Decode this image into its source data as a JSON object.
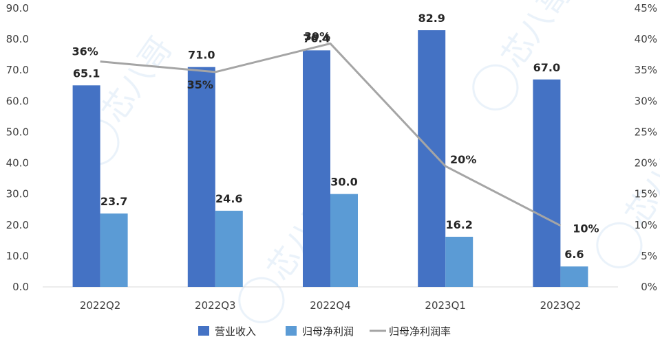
{
  "chart_data": {
    "type": "bar",
    "categories": [
      "2022Q2",
      "2022Q3",
      "2022Q4",
      "2023Q1",
      "2023Q2"
    ],
    "series": [
      {
        "name": "营业收入",
        "kind": "bar",
        "axis": "left",
        "color": "#4472C4",
        "values": [
          65.1,
          71.0,
          76.4,
          82.9,
          67.0
        ],
        "labels": [
          "65.1",
          "71.0",
          "76.4",
          "82.9",
          "67.0"
        ]
      },
      {
        "name": "归母净利润",
        "kind": "bar",
        "axis": "left",
        "color": "#5B9BD5",
        "values": [
          23.7,
          24.6,
          30.0,
          16.2,
          6.6
        ],
        "labels": [
          "23.7",
          "24.6",
          "30.0",
          "16.2",
          "6.6"
        ]
      },
      {
        "name": "归母净利润率",
        "kind": "line",
        "axis": "right",
        "color": "#A5A5A5",
        "values": [
          36.4,
          34.7,
          39.3,
          19.5,
          9.9
        ],
        "labels": [
          "36%",
          "35%",
          "39%",
          "20%",
          "10%"
        ]
      }
    ],
    "y_left": {
      "min": 0,
      "max": 90,
      "ticks": [
        "0.0",
        "10.0",
        "20.0",
        "30.0",
        "40.0",
        "50.0",
        "60.0",
        "70.0",
        "80.0",
        "90.0"
      ]
    },
    "y_right": {
      "min": 0,
      "max": 45,
      "ticks": [
        "0%",
        "5%",
        "10%",
        "15%",
        "20%",
        "25%",
        "30%",
        "35%",
        "40%",
        "45%"
      ]
    },
    "grid": false,
    "legend": "bottom",
    "watermark": "芯八哥"
  }
}
